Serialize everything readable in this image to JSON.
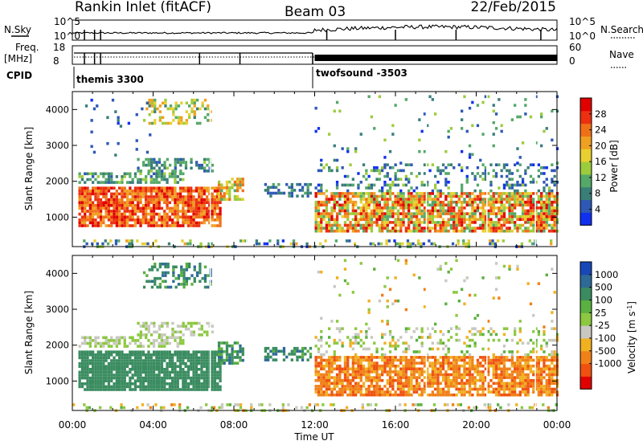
{
  "header": {
    "station": "Rankin Inlet (fitACF)",
    "beam": "Beam 03",
    "date": "22/Feb/2015"
  },
  "param_panels": {
    "nsky_label": "N.Sky",
    "nsearch_label": "N.Search",
    "freq_label": "Freq.",
    "freq_unit": "[MHz]",
    "nave_label": "Nave",
    "cpid_label": "CPID",
    "nsky_ticks": [
      "10^5",
      "10^0"
    ],
    "nsearch_ticks": [
      "10^5",
      "10^0"
    ],
    "freq_ticks": [
      "18",
      "8"
    ],
    "nave_ticks": [
      "60",
      "0"
    ],
    "cpid_segments": [
      {
        "start_hour": 0,
        "end_hour": 11.9,
        "label": "themis 3300"
      },
      {
        "start_hour": 11.9,
        "end_hour": 24,
        "label": "twofsound -3503"
      }
    ]
  },
  "chart_data": [
    {
      "type": "heatmap",
      "name": "power",
      "title": "",
      "xlabel": "Time UT",
      "ylabel": "Slant Range [km]",
      "xlim": [
        0,
        24
      ],
      "ylim": [
        180,
        4500
      ],
      "x_ticks": [
        "00:00",
        "04:00",
        "08:00",
        "12:00",
        "16:00",
        "20:00",
        "00:00"
      ],
      "y_ticks": [
        "1000",
        "2000",
        "3000",
        "4000"
      ],
      "colorbar": {
        "label": "Power [dB]",
        "range": [
          0,
          32
        ],
        "tick_labels": [
          "4",
          "8",
          "12",
          "16",
          "20",
          "24",
          "28"
        ],
        "colors": [
          "#1030f0",
          "#2e58b6",
          "#3a7e78",
          "#54a868",
          "#9ccc3c",
          "#e8d030",
          "#f0a020",
          "#f07018",
          "#ec3010",
          "#e00000"
        ]
      },
      "scatter_regions": [
        {
          "t0": 0.3,
          "t1": 7.3,
          "r0": 800,
          "r1": 1850,
          "level_lo": 20,
          "level_hi": 31,
          "density": 0.85
        },
        {
          "t0": 0.3,
          "t1": 5.5,
          "r0": 2000,
          "r1": 2250,
          "level_lo": 6,
          "level_hi": 14,
          "density": 0.6
        },
        {
          "t0": 3.2,
          "t1": 7.0,
          "r0": 2300,
          "r1": 2650,
          "level_lo": 4,
          "level_hi": 14,
          "density": 0.5
        },
        {
          "t0": 7.2,
          "t1": 8.5,
          "r0": 1500,
          "r1": 2100,
          "level_lo": 10,
          "level_hi": 24,
          "density": 0.7
        },
        {
          "t0": 9.5,
          "t1": 11.8,
          "r0": 1550,
          "r1": 1950,
          "level_lo": 4,
          "level_hi": 10,
          "density": 0.5
        },
        {
          "t0": 3.5,
          "t1": 6.8,
          "r0": 3650,
          "r1": 4300,
          "level_lo": 8,
          "level_hi": 22,
          "density": 0.4
        },
        {
          "t0": 0.5,
          "t1": 4.0,
          "r0": 2700,
          "r1": 4300,
          "level_lo": 2,
          "level_hi": 8,
          "density": 0.05
        },
        {
          "t0": 12.0,
          "t1": 24.0,
          "r0": 650,
          "r1": 1700,
          "level_lo": 10,
          "level_hi": 31,
          "density": 0.8
        },
        {
          "t0": 12.0,
          "t1": 24.0,
          "r0": 1700,
          "r1": 2500,
          "level_lo": 2,
          "level_hi": 14,
          "density": 0.25
        },
        {
          "t0": 12.0,
          "t1": 24.0,
          "r0": 2500,
          "r1": 4400,
          "level_lo": 2,
          "level_hi": 16,
          "density": 0.04
        },
        {
          "t0": 0.0,
          "t1": 24.0,
          "r0": 180,
          "r1": 380,
          "level_lo": 2,
          "level_hi": 20,
          "density": 0.25
        }
      ]
    },
    {
      "type": "heatmap",
      "name": "velocity",
      "title": "",
      "xlabel": "Time UT",
      "ylabel": "Slant Range [km]",
      "xlim": [
        0,
        24
      ],
      "ylim": [
        180,
        4500
      ],
      "x_ticks": [
        "00:00",
        "04:00",
        "08:00",
        "12:00",
        "16:00",
        "20:00",
        "00:00"
      ],
      "y_ticks": [
        "1000",
        "2000",
        "3000",
        "4000"
      ],
      "colorbar": {
        "label": "Velocity [m s^-1]",
        "tick_labels": [
          "1000",
          "500",
          "100",
          "25",
          "-25",
          "-100",
          "-500",
          "-1000"
        ],
        "colors": [
          "#1848b8",
          "#2e6a98",
          "#3a8c60",
          "#5ab040",
          "#8cc840",
          "#c8c8c0",
          "#f0b020",
          "#f08018",
          "#f05010",
          "#e00000"
        ]
      },
      "scatter_regions": [
        {
          "t0": 0.3,
          "t1": 7.3,
          "r0": 800,
          "r1": 1850,
          "level_lo": 2,
          "level_hi": 2,
          "density": 0.9
        },
        {
          "t0": 0.3,
          "t1": 5.5,
          "r0": 2000,
          "r1": 2250,
          "level_lo": 4,
          "level_hi": 5,
          "density": 0.6
        },
        {
          "t0": 3.2,
          "t1": 7.0,
          "r0": 2300,
          "r1": 2650,
          "level_lo": 4,
          "level_hi": 5,
          "density": 0.5
        },
        {
          "t0": 7.2,
          "t1": 8.5,
          "r0": 1500,
          "r1": 2100,
          "level_lo": 1,
          "level_hi": 3,
          "density": 0.7
        },
        {
          "t0": 9.5,
          "t1": 11.8,
          "r0": 1550,
          "r1": 1950,
          "level_lo": 1,
          "level_hi": 3,
          "density": 0.5
        },
        {
          "t0": 3.5,
          "t1": 6.8,
          "r0": 3650,
          "r1": 4300,
          "level_lo": 1,
          "level_hi": 3,
          "density": 0.4
        },
        {
          "t0": 12.0,
          "t1": 24.0,
          "r0": 650,
          "r1": 1700,
          "level_lo": 6,
          "level_hi": 8,
          "density": 0.8
        },
        {
          "t0": 12.0,
          "t1": 24.0,
          "r0": 1700,
          "r1": 2500,
          "level_lo": 3,
          "level_hi": 6,
          "density": 0.25
        },
        {
          "t0": 12.0,
          "t1": 24.0,
          "r0": 2500,
          "r1": 4400,
          "level_lo": 3,
          "level_hi": 7,
          "density": 0.04
        },
        {
          "t0": 0.0,
          "t1": 24.0,
          "r0": 180,
          "r1": 380,
          "level_lo": 3,
          "level_hi": 7,
          "density": 0.25
        }
      ]
    }
  ]
}
